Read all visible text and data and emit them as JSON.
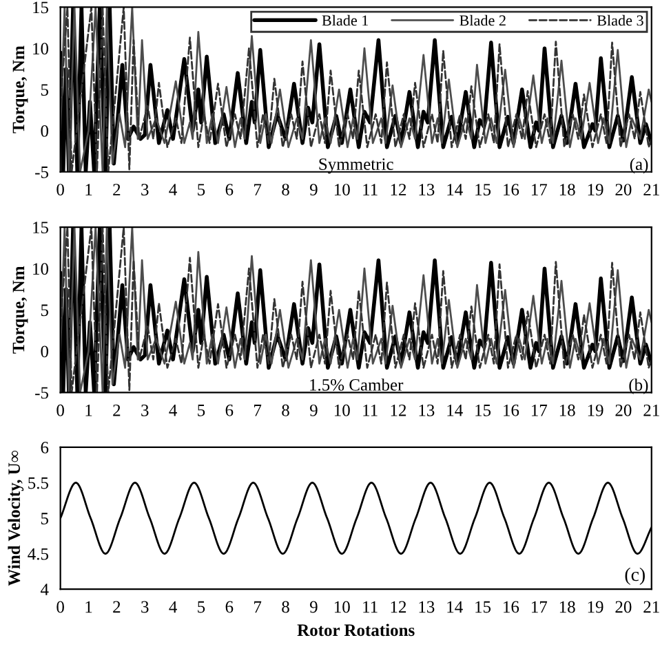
{
  "chart_data": [
    {
      "type": "line",
      "ylabel": "Torque, Nm",
      "annotations": [
        "Symmetric",
        "(a)"
      ],
      "xlim": [
        0,
        21
      ],
      "ylim": [
        -5,
        15
      ],
      "xticks": [
        0,
        1,
        2,
        3,
        4,
        5,
        6,
        7,
        8,
        9,
        10,
        11,
        12,
        13,
        14,
        15,
        16,
        17,
        18,
        19,
        20,
        21
      ],
      "yticks": [
        -5,
        0,
        5,
        10,
        15
      ],
      "grid": false,
      "legend": "top right",
      "series": [
        {
          "name": "Blade 1",
          "color": "#000000",
          "line_style": "solid",
          "x": [
            0,
            0.1,
            0.2,
            0.3,
            0.45,
            0.6,
            0.75,
            0.9,
            1.05,
            1.2,
            1.4,
            1.6,
            1.75,
            1.9,
            2.2,
            2.4,
            2.6,
            2.85,
            3.0,
            3.2,
            3.5,
            3.8,
            4.0,
            4.4,
            4.7,
            4.9,
            5.0,
            5.2,
            5.5,
            5.8,
            6.0,
            6.3,
            6.6,
            6.8,
            6.9,
            7.1,
            7.4,
            7.7,
            8.0,
            8.3,
            8.6,
            8.8,
            8.95,
            9.2,
            9.5,
            9.8,
            10.0,
            10.3,
            10.6,
            10.8,
            11.0,
            11.3,
            11.6,
            11.9,
            12.1,
            12.4,
            12.7,
            12.9,
            13.05,
            13.3,
            13.6,
            13.9,
            14.1,
            14.4,
            14.7,
            14.9,
            15.05,
            15.3,
            15.6,
            15.9,
            16.1,
            16.4,
            16.7,
            16.9,
            17.0,
            17.2,
            17.5,
            17.8,
            18.0,
            18.3,
            18.6,
            18.9,
            19.0,
            19.2,
            19.5,
            19.8,
            20.0,
            20.3,
            20.6,
            20.8,
            21.0
          ],
          "values": [
            9.5,
            -5,
            7.5,
            -5,
            15,
            -5,
            15,
            -5,
            3.5,
            -5,
            15,
            -5,
            15,
            -4,
            8,
            -1,
            0.5,
            -1,
            -0.5,
            8,
            -1.5,
            2.5,
            -1,
            8.7,
            0,
            5,
            1,
            9,
            -1.5,
            2,
            -1,
            7,
            -1.5,
            3.5,
            1,
            9.8,
            -2,
            2,
            -1,
            5.7,
            -1.5,
            2.8,
            1,
            10.5,
            -2,
            1.8,
            -1.5,
            5,
            -2,
            2.3,
            1,
            11,
            -2,
            1.8,
            -1.5,
            4.7,
            -2,
            2.3,
            1,
            11,
            -2,
            1.7,
            -1.5,
            4.7,
            -2,
            1.3,
            0.5,
            10.7,
            -2,
            1.7,
            -1.5,
            5,
            -2,
            1,
            0,
            10,
            -2,
            1.8,
            -1.5,
            5.7,
            -2,
            0.8,
            0,
            8.8,
            -2,
            1.8,
            -1.2,
            6.5,
            -1.5,
            0.8,
            -1.5
          ]
        },
        {
          "name": "Blade 2",
          "color": "#4d4d4d",
          "line_style": "solid",
          "x": [
            0,
            0.15,
            0.3,
            0.5,
            0.7,
            1.0,
            1.25,
            1.5,
            1.65,
            1.85,
            2.1,
            2.3,
            2.55,
            2.75,
            2.9,
            3.1,
            3.4,
            3.7,
            4.1,
            4.4,
            4.6,
            4.7,
            4.9,
            5.2,
            5.4,
            5.6,
            5.9,
            6.2,
            6.4,
            6.55,
            6.8,
            7.1,
            7.3,
            7.5,
            7.8,
            8.1,
            8.4,
            8.6,
            8.9,
            9.2,
            9.4,
            9.6,
            9.9,
            10.2,
            10.4,
            10.55,
            10.8,
            11.1,
            11.4,
            11.55,
            11.8,
            12.1,
            12.4,
            12.6,
            12.9,
            13.2,
            13.4,
            13.55,
            13.8,
            14.1,
            14.4,
            14.6,
            14.8,
            15.1,
            15.3,
            15.5,
            15.8,
            16.1,
            16.3,
            16.5,
            16.8,
            17.1,
            17.3,
            17.5,
            17.8,
            18.1,
            18.3,
            18.5,
            18.8,
            19.1,
            19.3,
            19.5,
            19.8,
            20.1,
            20.3,
            20.6,
            20.9,
            21.0
          ],
          "values": [
            0,
            15,
            -5,
            15,
            -5,
            0,
            15,
            -5,
            15,
            -4,
            2,
            -2,
            15,
            -1,
            11,
            -1,
            1.5,
            -1.5,
            6,
            -1.5,
            1,
            -1,
            12,
            -1.5,
            2,
            -1.5,
            5.3,
            -2,
            1.5,
            -1,
            11.5,
            -1.5,
            2,
            -1.5,
            5,
            -2,
            1.5,
            -1,
            11,
            -1.5,
            1.5,
            -1.5,
            5,
            -2,
            1.5,
            -1,
            10,
            -1.5,
            1.5,
            -1.5,
            5.5,
            -2,
            1.5,
            -1,
            9.2,
            -1.5,
            1.5,
            -1.5,
            6.2,
            -2,
            1.5,
            -1,
            8,
            -1.5,
            1.5,
            -1.5,
            7.4,
            -2,
            1.5,
            -1,
            6.7,
            -1.5,
            1.5,
            -1.5,
            8.5,
            -2,
            1.5,
            -1,
            5.8,
            -1.5,
            1.5,
            -1.5,
            9.8,
            -2,
            1.5,
            -1,
            5,
            3.5
          ]
        },
        {
          "name": "Blade 3",
          "color": "#333333",
          "line_style": "dashed",
          "x": [
            0,
            0.25,
            0.4,
            1.1,
            1.3,
            1.5,
            1.7,
            2.25,
            2.45,
            2.6,
            2.8,
            3.1,
            3.3,
            3.5,
            3.8,
            4.1,
            4.3,
            4.6,
            4.9,
            5.1,
            5.3,
            5.6,
            5.9,
            6.2,
            6.4,
            6.7,
            7.0,
            7.2,
            7.4,
            7.6,
            7.9,
            8.2,
            8.4,
            8.6,
            8.9,
            9.2,
            9.4,
            9.6,
            9.9,
            10.2,
            10.4,
            10.6,
            10.9,
            11.2,
            11.4,
            11.6,
            11.9,
            12.2,
            12.4,
            12.6,
            12.9,
            13.2,
            13.4,
            13.6,
            13.9,
            14.2,
            14.4,
            14.6,
            14.9,
            15.2,
            15.4,
            15.6,
            15.9,
            16.2,
            16.4,
            16.6,
            16.9,
            17.2,
            17.4,
            17.6,
            17.9,
            18.2,
            18.4,
            18.6,
            18.9,
            19.2,
            19.4,
            19.6,
            19.9,
            20.2,
            20.4,
            20.6,
            20.9,
            21.0
          ],
          "values": [
            3,
            15,
            -5,
            15,
            -5,
            15,
            -5,
            15,
            -4.7,
            11,
            -1,
            3,
            -1,
            5.8,
            -2,
            1.5,
            -1.5,
            11.3,
            -2,
            2,
            -1.5,
            5.7,
            -2,
            2,
            -1,
            10,
            -2,
            2,
            -1.5,
            6.3,
            -2,
            2,
            -1,
            8.4,
            -2,
            2,
            -1.5,
            7.3,
            -2,
            2,
            -1,
            7.3,
            -2,
            2,
            -1.5,
            8.3,
            -2,
            2,
            -1,
            5.8,
            -2,
            2,
            -1.5,
            9.7,
            -2,
            2,
            -1,
            5.4,
            -2,
            2,
            -1.5,
            10.5,
            -2,
            2,
            -1,
            4.8,
            -2,
            2,
            -1.5,
            10.8,
            -2,
            2,
            -1,
            4.4,
            -2,
            2,
            -1.5,
            10.7,
            -2,
            2,
            -1,
            4.7,
            -2,
            -1
          ]
        }
      ]
    },
    {
      "type": "line",
      "ylabel": "Torque, Nm",
      "annotations": [
        "1.5% Camber",
        "(b)"
      ],
      "xlim": [
        0,
        21
      ],
      "ylim": [
        -5,
        15
      ],
      "xticks": [
        0,
        1,
        2,
        3,
        4,
        5,
        6,
        7,
        8,
        9,
        10,
        11,
        12,
        13,
        14,
        15,
        16,
        17,
        18,
        19,
        20,
        21
      ],
      "yticks": [
        -5,
        0,
        5,
        10,
        15
      ],
      "grid": false,
      "series": [
        {
          "color": "#000000",
          "line_style": "solid",
          "x": [
            0,
            0.1,
            0.2,
            0.3,
            0.45,
            0.6,
            0.75,
            0.9,
            1.05,
            1.2,
            1.4,
            1.6,
            1.75,
            1.9,
            2.2,
            2.4,
            2.6,
            2.85,
            3.0,
            3.2,
            3.5,
            3.8,
            4.0,
            4.4,
            4.7,
            4.9,
            5.0,
            5.2,
            5.5,
            5.8,
            6.0,
            6.3,
            6.6,
            6.8,
            6.9,
            7.1,
            7.4,
            7.7,
            8.0,
            8.3,
            8.6,
            8.8,
            8.95,
            9.2,
            9.5,
            9.8,
            10.0,
            10.3,
            10.6,
            10.8,
            11.0,
            11.3,
            11.6,
            11.9,
            12.1,
            12.4,
            12.7,
            12.9,
            13.05,
            13.3,
            13.6,
            13.9,
            14.1,
            14.4,
            14.7,
            14.9,
            15.05,
            15.3,
            15.6,
            15.9,
            16.1,
            16.4,
            16.7,
            16.9,
            17.0,
            17.2,
            17.5,
            17.8,
            18.0,
            18.3,
            18.6,
            18.9,
            19.0,
            19.2,
            19.5,
            19.8,
            20.0,
            20.3,
            20.6,
            20.8,
            21.0
          ],
          "values": [
            9.5,
            -5,
            7.5,
            -5,
            15,
            -5,
            15,
            -5,
            3.5,
            -5,
            15,
            -5,
            15,
            -4,
            8,
            -1,
            0.5,
            -1,
            -0.5,
            8,
            -1.5,
            2.5,
            -1,
            8.7,
            0,
            5,
            1,
            9,
            -1.5,
            2,
            -1,
            7,
            -1.5,
            3.5,
            1,
            9.8,
            -2,
            2,
            -1,
            5.7,
            -1.5,
            2.8,
            1,
            10.5,
            -2,
            1.8,
            -1.5,
            5,
            -2,
            2.3,
            1,
            11,
            -2,
            1.8,
            -1.5,
            4.7,
            -2,
            2.3,
            1,
            11,
            -2,
            1.7,
            -1.5,
            4.7,
            -2,
            1.3,
            0.5,
            10.7,
            -2,
            1.7,
            -1.5,
            5,
            -2,
            1,
            0,
            10,
            -2,
            1.8,
            -1.5,
            5.7,
            -2,
            0.8,
            0,
            8.8,
            -2,
            1.8,
            -1.2,
            6.5,
            -1.5,
            0.8,
            -1.5
          ]
        },
        {
          "color": "#4d4d4d",
          "line_style": "solid",
          "x": [
            0,
            0.15,
            0.3,
            0.5,
            0.7,
            1.0,
            1.25,
            1.5,
            1.65,
            1.85,
            2.1,
            2.3,
            2.55,
            2.75,
            2.9,
            3.1,
            3.4,
            3.7,
            4.1,
            4.4,
            4.6,
            4.7,
            4.9,
            5.2,
            5.4,
            5.6,
            5.9,
            6.2,
            6.4,
            6.55,
            6.8,
            7.1,
            7.3,
            7.5,
            7.8,
            8.1,
            8.4,
            8.6,
            8.9,
            9.2,
            9.4,
            9.6,
            9.9,
            10.2,
            10.4,
            10.55,
            10.8,
            11.1,
            11.4,
            11.55,
            11.8,
            12.1,
            12.4,
            12.6,
            12.9,
            13.2,
            13.4,
            13.55,
            13.8,
            14.1,
            14.4,
            14.6,
            14.8,
            15.1,
            15.3,
            15.5,
            15.8,
            16.1,
            16.3,
            16.5,
            16.8,
            17.1,
            17.3,
            17.5,
            17.8,
            18.1,
            18.3,
            18.5,
            18.8,
            19.1,
            19.3,
            19.5,
            19.8,
            20.1,
            20.3,
            20.6,
            20.9,
            21.0
          ],
          "values": [
            0,
            15,
            -5,
            15,
            -5,
            0,
            15,
            -5,
            15,
            -4,
            2,
            -2,
            15,
            -1,
            11,
            -1,
            1.5,
            -1.5,
            6,
            -1.5,
            1,
            -1,
            12,
            -1.5,
            2,
            -1.5,
            5.3,
            -2,
            1.5,
            -1,
            11.5,
            -1.5,
            2,
            -1.5,
            5,
            -2,
            1.5,
            -1,
            11,
            -1.5,
            1.5,
            -1.5,
            5,
            -2,
            1.5,
            -1,
            10,
            -1.5,
            1.5,
            -1.5,
            5.5,
            -2,
            1.5,
            -1,
            9.2,
            -1.5,
            1.5,
            -1.5,
            6.2,
            -2,
            1.5,
            -1,
            8,
            -1.5,
            1.5,
            -1.5,
            7.4,
            -2,
            1.5,
            -1,
            6.7,
            -1.5,
            1.5,
            -1.5,
            8.5,
            -2,
            1.5,
            -1,
            5.8,
            -1.5,
            1.5,
            -1.5,
            9.8,
            -2,
            1.5,
            -1,
            5,
            3.5
          ]
        },
        {
          "color": "#333333",
          "line_style": "dashed",
          "x": [
            0,
            0.25,
            0.4,
            1.1,
            1.3,
            1.5,
            1.7,
            2.25,
            2.45,
            2.6,
            2.8,
            3.1,
            3.3,
            3.5,
            3.8,
            4.1,
            4.3,
            4.6,
            4.9,
            5.1,
            5.3,
            5.6,
            5.9,
            6.2,
            6.4,
            6.7,
            7.0,
            7.2,
            7.4,
            7.6,
            7.9,
            8.2,
            8.4,
            8.6,
            8.9,
            9.2,
            9.4,
            9.6,
            9.9,
            10.2,
            10.4,
            10.6,
            10.9,
            11.2,
            11.4,
            11.6,
            11.9,
            12.2,
            12.4,
            12.6,
            12.9,
            13.2,
            13.4,
            13.6,
            13.9,
            14.2,
            14.4,
            14.6,
            14.9,
            15.2,
            15.4,
            15.6,
            15.9,
            16.2,
            16.4,
            16.6,
            16.9,
            17.2,
            17.4,
            17.6,
            17.9,
            18.2,
            18.4,
            18.6,
            18.9,
            19.2,
            19.4,
            19.6,
            19.9,
            20.2,
            20.4,
            20.6,
            20.9,
            21.0
          ],
          "values": [
            3,
            15,
            -5,
            15,
            -5,
            15,
            -5,
            15,
            -4.7,
            11,
            -1,
            3,
            -1,
            5.8,
            -2,
            1.5,
            -1.5,
            11.3,
            -2,
            2,
            -1.5,
            5.7,
            -2,
            2,
            -1,
            10,
            -2,
            2,
            -1.5,
            6.3,
            -2,
            2,
            -1,
            8.4,
            -2,
            2,
            -1.5,
            7.3,
            -2,
            2,
            -1,
            7.3,
            -2,
            2,
            -1.5,
            8.3,
            -2,
            2,
            -1,
            5.8,
            -2,
            2,
            -1.5,
            9.7,
            -2,
            2,
            -1,
            5.4,
            -2,
            2,
            -1.5,
            10.5,
            -2,
            2,
            -1,
            4.8,
            -2,
            2,
            -1.5,
            10.8,
            -2,
            2,
            -1,
            4.4,
            -2,
            2,
            -1.5,
            10.7,
            -2,
            2,
            -1,
            4.7,
            -2,
            -1
          ]
        }
      ]
    },
    {
      "type": "line",
      "xlabel": "Rotor Rotations",
      "ylabel": "Wind Velocity, U∞",
      "annotations": [
        "(c)"
      ],
      "xlim": [
        0,
        21
      ],
      "ylim": [
        4,
        6
      ],
      "xticks": [
        0,
        1,
        2,
        3,
        4,
        5,
        6,
        7,
        8,
        9,
        10,
        11,
        12,
        13,
        14,
        15,
        16,
        17,
        18,
        19,
        20,
        21
      ],
      "yticks": [
        4,
        4.5,
        5,
        5.5,
        6
      ],
      "grid": false,
      "series": [
        {
          "color": "#000000",
          "line_style": "solid",
          "x": [
            0,
            0.55,
            1.075,
            1.6,
            2.125,
            2.65,
            3.175,
            3.7,
            4.225,
            4.75,
            5.275,
            5.8,
            6.325,
            6.85,
            7.375,
            7.9,
            8.425,
            8.95,
            9.475,
            10.0,
            10.525,
            11.05,
            11.575,
            12.1,
            12.625,
            13.15,
            13.675,
            14.2,
            14.725,
            15.25,
            15.775,
            16.3,
            16.825,
            17.35,
            17.875,
            18.4,
            18.925,
            19.45,
            19.975,
            20.5,
            21.0
          ],
          "values": [
            5,
            5.5,
            5,
            4.5,
            5,
            5.5,
            5,
            4.5,
            5,
            5.5,
            5,
            4.5,
            5,
            5.5,
            5,
            4.5,
            5,
            5.5,
            5,
            4.5,
            5,
            5.5,
            5,
            4.5,
            5,
            5.5,
            5,
            4.5,
            5,
            5.5,
            5,
            4.5,
            5,
            5.5,
            5,
            4.5,
            5,
            5.5,
            5,
            4.5,
            4.87
          ]
        }
      ]
    }
  ]
}
